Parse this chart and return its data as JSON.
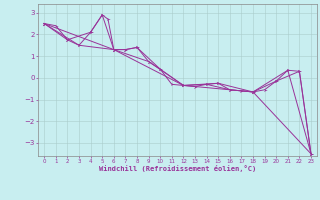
{
  "xlabel": "Windchill (Refroidissement éolien,°C)",
  "bg_color": "#c8eef0",
  "line_color": "#993399",
  "grid_color": "#aacccc",
  "xlim": [
    -0.5,
    23.5
  ],
  "ylim": [
    -3.6,
    3.4
  ],
  "yticks": [
    -3,
    -2,
    -1,
    0,
    1,
    2,
    3
  ],
  "xticks": [
    0,
    1,
    2,
    3,
    4,
    5,
    6,
    7,
    8,
    9,
    10,
    11,
    12,
    13,
    14,
    15,
    16,
    17,
    18,
    19,
    20,
    21,
    22,
    23
  ],
  "series1": [
    [
      0,
      2.5
    ],
    [
      1,
      2.4
    ],
    [
      2,
      1.75
    ],
    [
      3,
      1.5
    ],
    [
      4,
      2.1
    ],
    [
      5,
      2.9
    ],
    [
      5.5,
      2.7
    ],
    [
      6,
      1.3
    ],
    [
      7,
      1.3
    ],
    [
      8,
      1.4
    ],
    [
      9,
      0.75
    ],
    [
      10,
      0.4
    ],
    [
      11,
      -0.3
    ],
    [
      12,
      -0.35
    ],
    [
      13,
      -0.4
    ],
    [
      14,
      -0.3
    ],
    [
      15,
      -0.25
    ],
    [
      16,
      -0.55
    ],
    [
      17,
      -0.6
    ],
    [
      18,
      -0.65
    ],
    [
      19,
      -0.55
    ],
    [
      20,
      -0.15
    ],
    [
      21,
      0.35
    ],
    [
      22,
      0.3
    ],
    [
      23,
      -3.5
    ]
  ],
  "series2": [
    [
      0,
      2.5
    ],
    [
      2,
      1.75
    ],
    [
      4,
      2.1
    ],
    [
      5,
      2.9
    ],
    [
      6,
      1.3
    ],
    [
      7,
      1.3
    ],
    [
      8,
      1.4
    ],
    [
      10,
      0.4
    ],
    [
      12,
      -0.35
    ],
    [
      14,
      -0.3
    ],
    [
      16,
      -0.55
    ],
    [
      18,
      -0.65
    ],
    [
      20,
      -0.15
    ],
    [
      22,
      0.3
    ],
    [
      23,
      -3.5
    ]
  ],
  "series3": [
    [
      0,
      2.5
    ],
    [
      3,
      1.5
    ],
    [
      6,
      1.3
    ],
    [
      9,
      0.75
    ],
    [
      12,
      -0.35
    ],
    [
      15,
      -0.25
    ],
    [
      18,
      -0.65
    ],
    [
      21,
      0.35
    ],
    [
      23,
      -3.5
    ]
  ],
  "series4": [
    [
      0,
      2.5
    ],
    [
      6,
      1.3
    ],
    [
      12,
      -0.35
    ],
    [
      18,
      -0.65
    ],
    [
      23,
      -3.5
    ]
  ]
}
